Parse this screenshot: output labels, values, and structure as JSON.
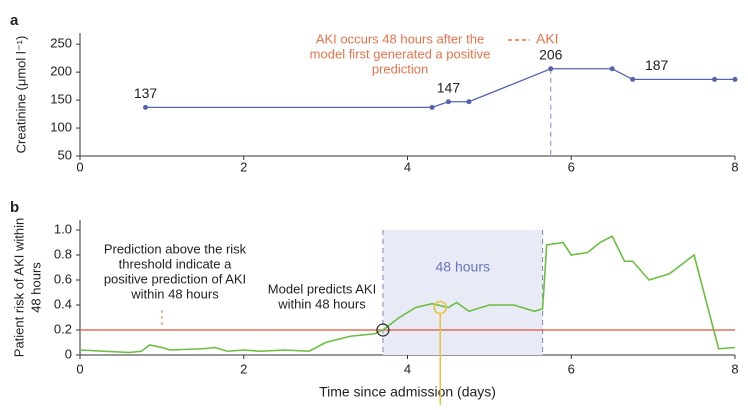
{
  "chart_data": [
    {
      "type": "line",
      "panel_label": "a",
      "ylabel": "Creatinine (μmol l⁻¹)",
      "x": [
        0.8,
        4.3,
        4.5,
        4.75,
        5.75,
        6.5,
        6.75,
        7.75,
        8
      ],
      "series": [
        {
          "name": "Creatinine",
          "color": "#5563b0",
          "values": [
            137,
            137,
            147,
            147,
            206,
            206,
            187,
            187,
            187
          ]
        }
      ],
      "xlim": [
        0,
        8
      ],
      "xticks": [
        0,
        2,
        4,
        6,
        8
      ],
      "ylim": [
        50,
        270
      ],
      "yticks": [
        50,
        100,
        150,
        200,
        250
      ],
      "event_x": 5.75,
      "annotation": [
        "AKI occurs 48 hours after the",
        "model first generated a positive",
        "prediction"
      ],
      "legend": {
        "label": "AKI",
        "color": "#e8734a"
      }
    },
    {
      "type": "line",
      "panel_label": "b",
      "ylabel": [
        "Patient risk of AKI within",
        "48 hours"
      ],
      "xlabel": "Time since admission (days)",
      "x": [
        0,
        0.3,
        0.6,
        0.75,
        0.85,
        1.0,
        1.1,
        1.5,
        1.65,
        1.8,
        2.0,
        2.2,
        2.5,
        2.8,
        3.0,
        3.3,
        3.6,
        3.7,
        3.9,
        4.1,
        4.3,
        4.5,
        4.6,
        4.75,
        5.0,
        5.3,
        5.55,
        5.65,
        5.7,
        5.9,
        6.0,
        6.2,
        6.35,
        6.5,
        6.65,
        6.75,
        6.95,
        7.2,
        7.5,
        7.8,
        8
      ],
      "series": [
        {
          "name": "Risk",
          "color": "#6bbf3e",
          "values": [
            0.04,
            0.03,
            0.02,
            0.03,
            0.08,
            0.06,
            0.04,
            0.05,
            0.06,
            0.03,
            0.04,
            0.03,
            0.04,
            0.03,
            0.1,
            0.15,
            0.17,
            0.2,
            0.3,
            0.38,
            0.41,
            0.38,
            0.42,
            0.35,
            0.4,
            0.4,
            0.35,
            0.37,
            0.88,
            0.9,
            0.8,
            0.82,
            0.9,
            0.95,
            0.75,
            0.75,
            0.6,
            0.65,
            0.8,
            0.05,
            0.06
          ]
        }
      ],
      "xlim": [
        0,
        8
      ],
      "xticks": [
        0,
        2,
        4,
        6,
        8
      ],
      "ylim": [
        0,
        1.08
      ],
      "yticks": [
        0,
        0.2,
        0.4,
        0.6,
        0.8,
        {
          "value": 1,
          "label": "1.0"
        }
      ],
      "threshold": 0.2,
      "threshold_color": "#e0553a",
      "window": [
        3.7,
        5.65
      ],
      "window_label": "48 hours",
      "prediction_point": [
        3.7,
        0.2
      ],
      "highlight_point": [
        4.4,
        0.38
      ],
      "annotation": [
        "Prediction above the risk",
        "threshold indicate a",
        "positive prediction of AKI",
        "within 48 hours"
      ],
      "annotation2": [
        "Model predicts AKI",
        "within 48 hours"
      ]
    }
  ]
}
